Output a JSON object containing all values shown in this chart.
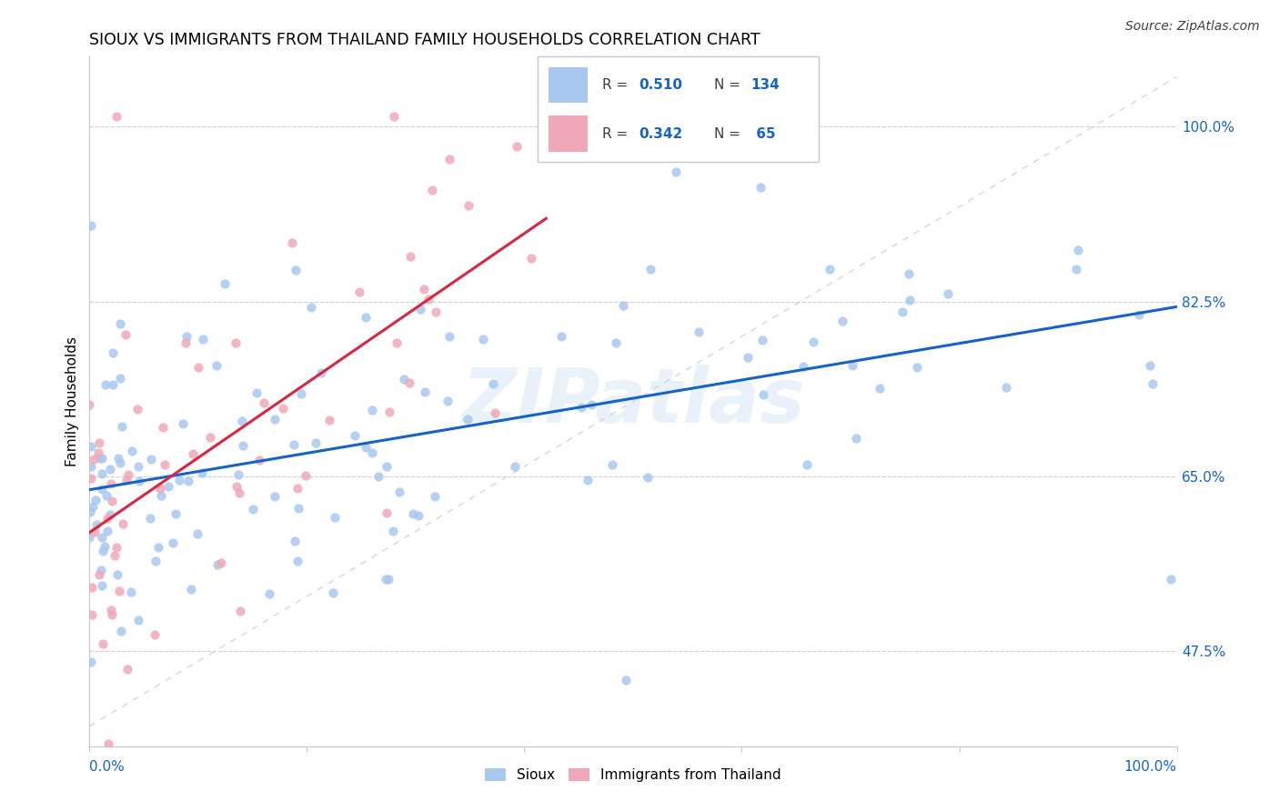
{
  "title": "SIOUX VS IMMIGRANTS FROM THAILAND FAMILY HOUSEHOLDS CORRELATION CHART",
  "source": "Source: ZipAtlas.com",
  "ylabel": "Family Households",
  "ytick_labels": [
    "47.5%",
    "65.0%",
    "82.5%",
    "100.0%"
  ],
  "ytick_values": [
    0.475,
    0.65,
    0.825,
    1.0
  ],
  "xlim": [
    0.0,
    1.0
  ],
  "ylim": [
    0.38,
    1.07
  ],
  "legend_r1": "0.510",
  "legend_n1": "134",
  "legend_r2": "0.342",
  "legend_n2": " 65",
  "sioux_color": "#a8c8f0",
  "thailand_color": "#f0a8b8",
  "sioux_line_color": "#1464c8",
  "thailand_line_color": "#d82840",
  "diagonal_color": "#d0c8d8",
  "watermark": "ZIPatlas",
  "title_fontsize": 12.5,
  "axis_label_fontsize": 11,
  "tick_fontsize": 11,
  "source_fontsize": 10,
  "sioux_intercept": 0.628,
  "sioux_slope": 0.197,
  "thailand_intercept": 0.595,
  "thailand_slope": 0.65,
  "sioux_seed": 17,
  "thailand_seed": 42
}
